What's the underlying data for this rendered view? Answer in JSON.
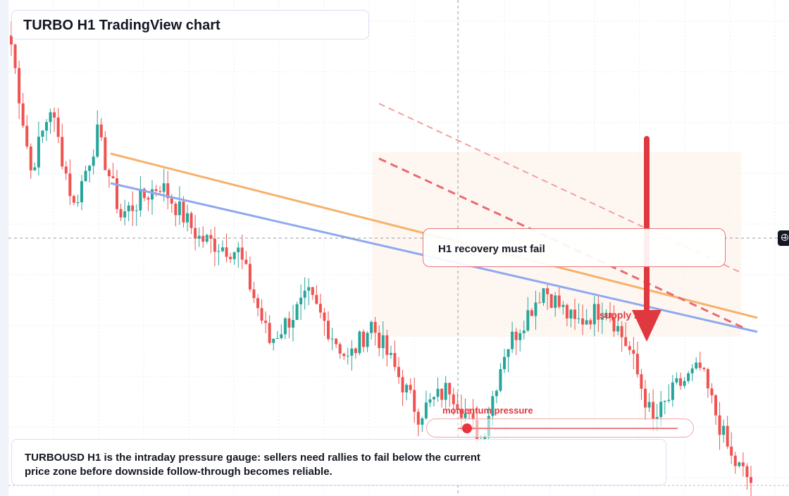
{
  "title": "TURBO H1 TradingView chart",
  "callout": {
    "text": "H1 recovery must fail"
  },
  "supply_label": "supply zone",
  "gauge": {
    "label": "momentum pressure",
    "level": 0.04
  },
  "footer": {
    "line1": "TURBOUSD H1 is the intraday pressure gauge: sellers need rallies to fail below the current",
    "line2": "price zone before downside follow-through becomes reliable."
  },
  "colors": {
    "up": "#26a69a",
    "down": "#ef5350",
    "trend_orange": "#f6b26b",
    "trend_blue": "#8fa9f0",
    "accent_red": "#e0383f",
    "grid": "#e9edf3"
  },
  "icons": {
    "crosshair": "crosshair-plus-icon",
    "arrow": "down-arrow-icon"
  },
  "chart_data": {
    "type": "candlestick",
    "series_name": "TURBOUSD",
    "timeframe": "H1",
    "ylim": [
      0,
      100
    ],
    "legs": [
      [
        0,
        98
      ],
      [
        5,
        70
      ],
      [
        10,
        84
      ],
      [
        16,
        62
      ],
      [
        22,
        78
      ],
      [
        28,
        60
      ],
      [
        38,
        67
      ],
      [
        48,
        55
      ],
      [
        58,
        52
      ],
      [
        66,
        32
      ],
      [
        76,
        42
      ],
      [
        86,
        28
      ],
      [
        92,
        36
      ],
      [
        104,
        16
      ],
      [
        112,
        22
      ],
      [
        120,
        10
      ],
      [
        126,
        30
      ],
      [
        136,
        44
      ],
      [
        144,
        36
      ],
      [
        152,
        40
      ],
      [
        158,
        30
      ],
      [
        164,
        14
      ],
      [
        170,
        22
      ],
      [
        176,
        26
      ],
      [
        184,
        6
      ],
      [
        190,
        0
      ]
    ],
    "trend_lines": [
      {
        "name": "orange",
        "from": [
          0,
          77
        ],
        "to": [
          1,
          48
        ]
      },
      {
        "name": "blue",
        "from": [
          0,
          71
        ],
        "to": [
          1,
          45
        ]
      }
    ]
  }
}
